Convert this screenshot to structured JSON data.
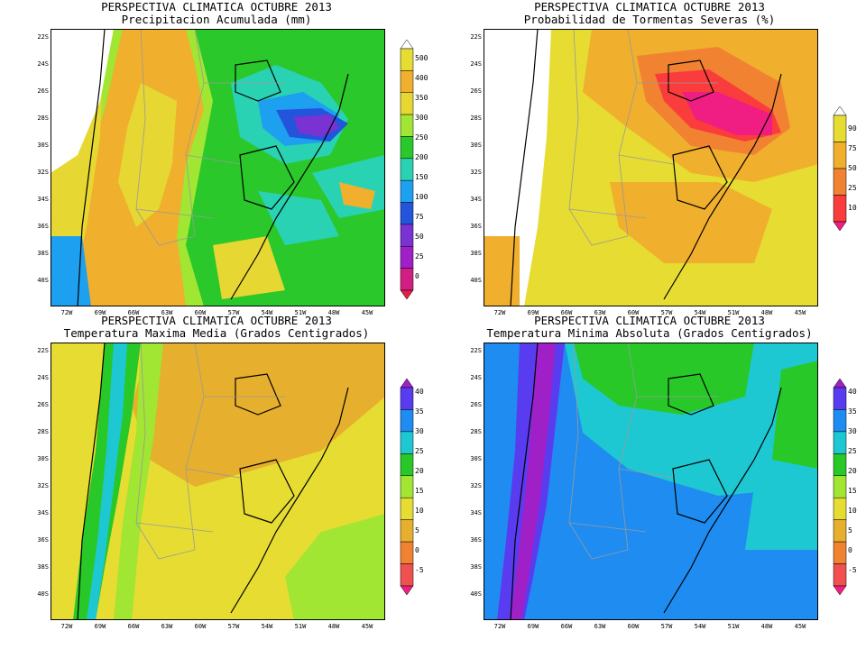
{
  "panels": [
    {
      "title1": "PERSPECTIVA CLIMATICA OCTUBRE 2013",
      "title2": "Precipitacion Acumulada (mm)",
      "legend": [
        "0",
        "25",
        "50",
        "75",
        "100",
        "150",
        "200",
        "250",
        "300",
        "350",
        "400",
        "500"
      ],
      "colors": [
        "#ffffff",
        "#e6dc32",
        "#f0af2d",
        "#e6d732",
        "#a0e632",
        "#2ac82a",
        "#2ad2b4",
        "#1ea0f0",
        "#2355dc",
        "#7a32d2",
        "#a020c8",
        "#d21e82",
        "#e61e46"
      ]
    },
    {
      "title1": "PERSPECTIVA CLIMATICA OCTUBRE 2013",
      "title2": "Probabilidad de Tormentas Severas (%)",
      "legend": [
        "10",
        "25",
        "50",
        "75",
        "90"
      ],
      "colors": [
        "#ffffff",
        "#e6dc32",
        "#f0af2d",
        "#f08232",
        "#fa3c3c",
        "#f01e82"
      ]
    },
    {
      "title1": "PERSPECTIVA CLIMATICA OCTUBRE 2013",
      "title2": "Temperatura Maxima Media (Grados Centigrados)",
      "legend": [
        "-5",
        "0",
        "5",
        "10",
        "15",
        "20",
        "25",
        "30",
        "35",
        "40"
      ],
      "colors": [
        "#a020c8",
        "#5a3cf0",
        "#1e8cf0",
        "#1ec8d2",
        "#28c828",
        "#a0e632",
        "#e6dc32",
        "#e6af2d",
        "#f08232",
        "#f05050",
        "#f01e82"
      ]
    },
    {
      "title1": "PERSPECTIVA CLIMATICA OCTUBRE 2013",
      "title2": "Temperatura Minima Absoluta (Grados Centigrados)",
      "legend": [
        "-5",
        "0",
        "5",
        "10",
        "15",
        "20",
        "25",
        "30",
        "35",
        "40"
      ],
      "colors": [
        "#a020c8",
        "#5a3cf0",
        "#1e8cf0",
        "#1ec8d2",
        "#28c828",
        "#a0e632",
        "#e6dc32",
        "#e6af2d",
        "#f08232",
        "#f05050",
        "#f01e82"
      ]
    }
  ],
  "axes": {
    "lat": [
      "22S",
      "24S",
      "26S",
      "28S",
      "30S",
      "32S",
      "34S",
      "36S",
      "38S",
      "40S"
    ],
    "lon": [
      "72W",
      "69W",
      "66W",
      "63W",
      "60W",
      "57W",
      "54W",
      "51W",
      "48W",
      "45W"
    ]
  }
}
